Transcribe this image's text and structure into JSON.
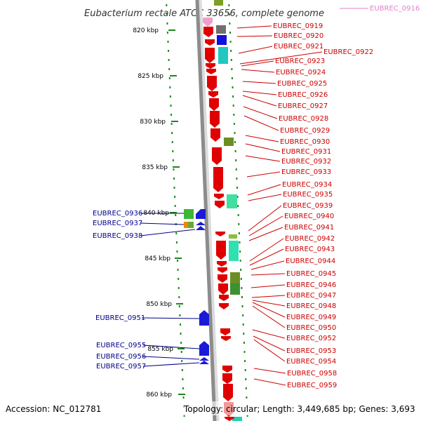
{
  "title": "Eubacterium rectale ATCC 33656, complete genome",
  "footer": {
    "accession": "Accession: NC_012781",
    "summary": "Topology: circular; Length: 3,449,685 bp; Genes: 3,693"
  },
  "scale": {
    "labels": [
      "820 kbp",
      "825 kbp",
      "830 kbp",
      "835 kbp",
      "840 kbp",
      "845 kbp",
      "850 kbp",
      "855 kbp",
      "860 kbp"
    ]
  },
  "colors": {
    "forward_cds": "#e00000",
    "reverse_cds": "#1a1ad6",
    "forward_label": "#cc0000",
    "reverse_label": "#00008b",
    "pink_label": "#e080c8",
    "backbone": "#8c8c8c",
    "tick": "#1a8a1a"
  },
  "gene_labels": {
    "pink": [
      "EUBREC_0916"
    ],
    "right": [
      "EUBREC_0919",
      "EUBREC_0920",
      "EUBREC_0921",
      "EUBREC_0922",
      "EUBREC_0923",
      "EUBREC_0924",
      "EUBREC_0925",
      "EUBREC_0926",
      "EUBREC_0927",
      "EUBREC_0928",
      "EUBREC_0929",
      "EUBREC_0930",
      "EUBREC_0931",
      "EUBREC_0932",
      "EUBREC_0933",
      "EUBREC_0934",
      "EUBREC_0935",
      "EUBREC_0939",
      "EUBREC_0940",
      "EUBREC_0941",
      "EUBREC_0942",
      "EUBREC_0943",
      "EUBREC_0944",
      "EUBREC_0945",
      "EUBREC_0946",
      "EUBREC_0947",
      "EUBREC_0948",
      "EUBREC_0949",
      "EUBREC_0950",
      "EUBREC_0952",
      "EUBREC_0953",
      "EUBREC_0954",
      "EUBREC_0958",
      "EUBREC_0959"
    ],
    "left": [
      "EUBREC_0936",
      "EUBREC_0937",
      "EUBREC_0938",
      "EUBREC_0951",
      "EUBREC_0955",
      "EUBREC_0956",
      "EUBREC_0957"
    ]
  }
}
